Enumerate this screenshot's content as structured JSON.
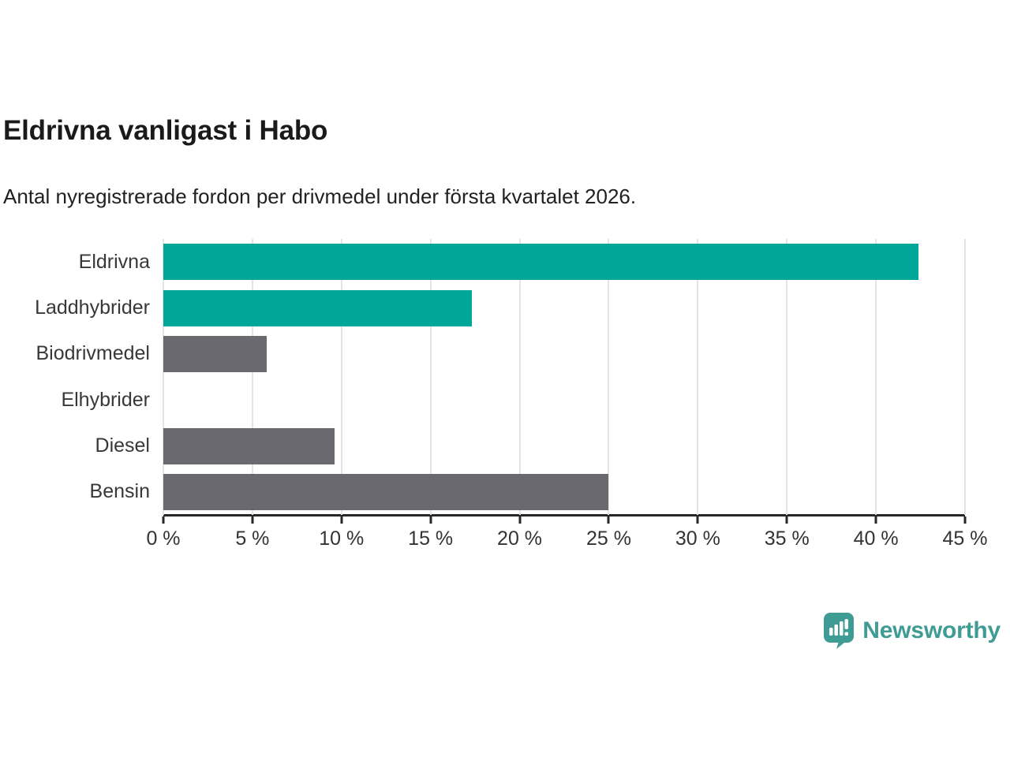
{
  "title": "Eldrivna vanligast i Habo",
  "subtitle": "Antal nyregistrerade fordon per drivmedel under första kvartalet 2026.",
  "chart_data": {
    "type": "bar",
    "orientation": "horizontal",
    "title": "Eldrivna vanligast i Habo",
    "subtitle": "Antal nyregistrerade fordon per drivmedel under första kvartalet 2026.",
    "categories": [
      "Eldrivna",
      "Laddhybrider",
      "Biodrivmedel",
      "Elhybrider",
      "Diesel",
      "Bensin"
    ],
    "values": [
      42.4,
      17.3,
      5.8,
      0,
      9.6,
      25
    ],
    "unit": "%",
    "xlim": [
      0,
      45
    ],
    "x_ticks": [
      "0 %",
      "5 %",
      "10 %",
      "15 %",
      "20 %",
      "25 %",
      "30 %",
      "35 %",
      "40 %",
      "45 %"
    ],
    "bar_colors": [
      "#00A698",
      "#00A698",
      "#69696F",
      "#69696F",
      "#69696F",
      "#69696F"
    ],
    "grid": true,
    "legend": "none"
  },
  "colors": {
    "accent_teal": "#00A698",
    "bar_gray": "#69696F",
    "gridline": "#E4E4E6",
    "axis": "#27272A",
    "text_dark": "#1A1A1A",
    "text_label": "#383838"
  },
  "branding": {
    "logo_text": "Newsworthy",
    "logo_color": "#3F9C94",
    "logo_icon": "newsworthy-speech-bubble-bar-chart-icon"
  }
}
